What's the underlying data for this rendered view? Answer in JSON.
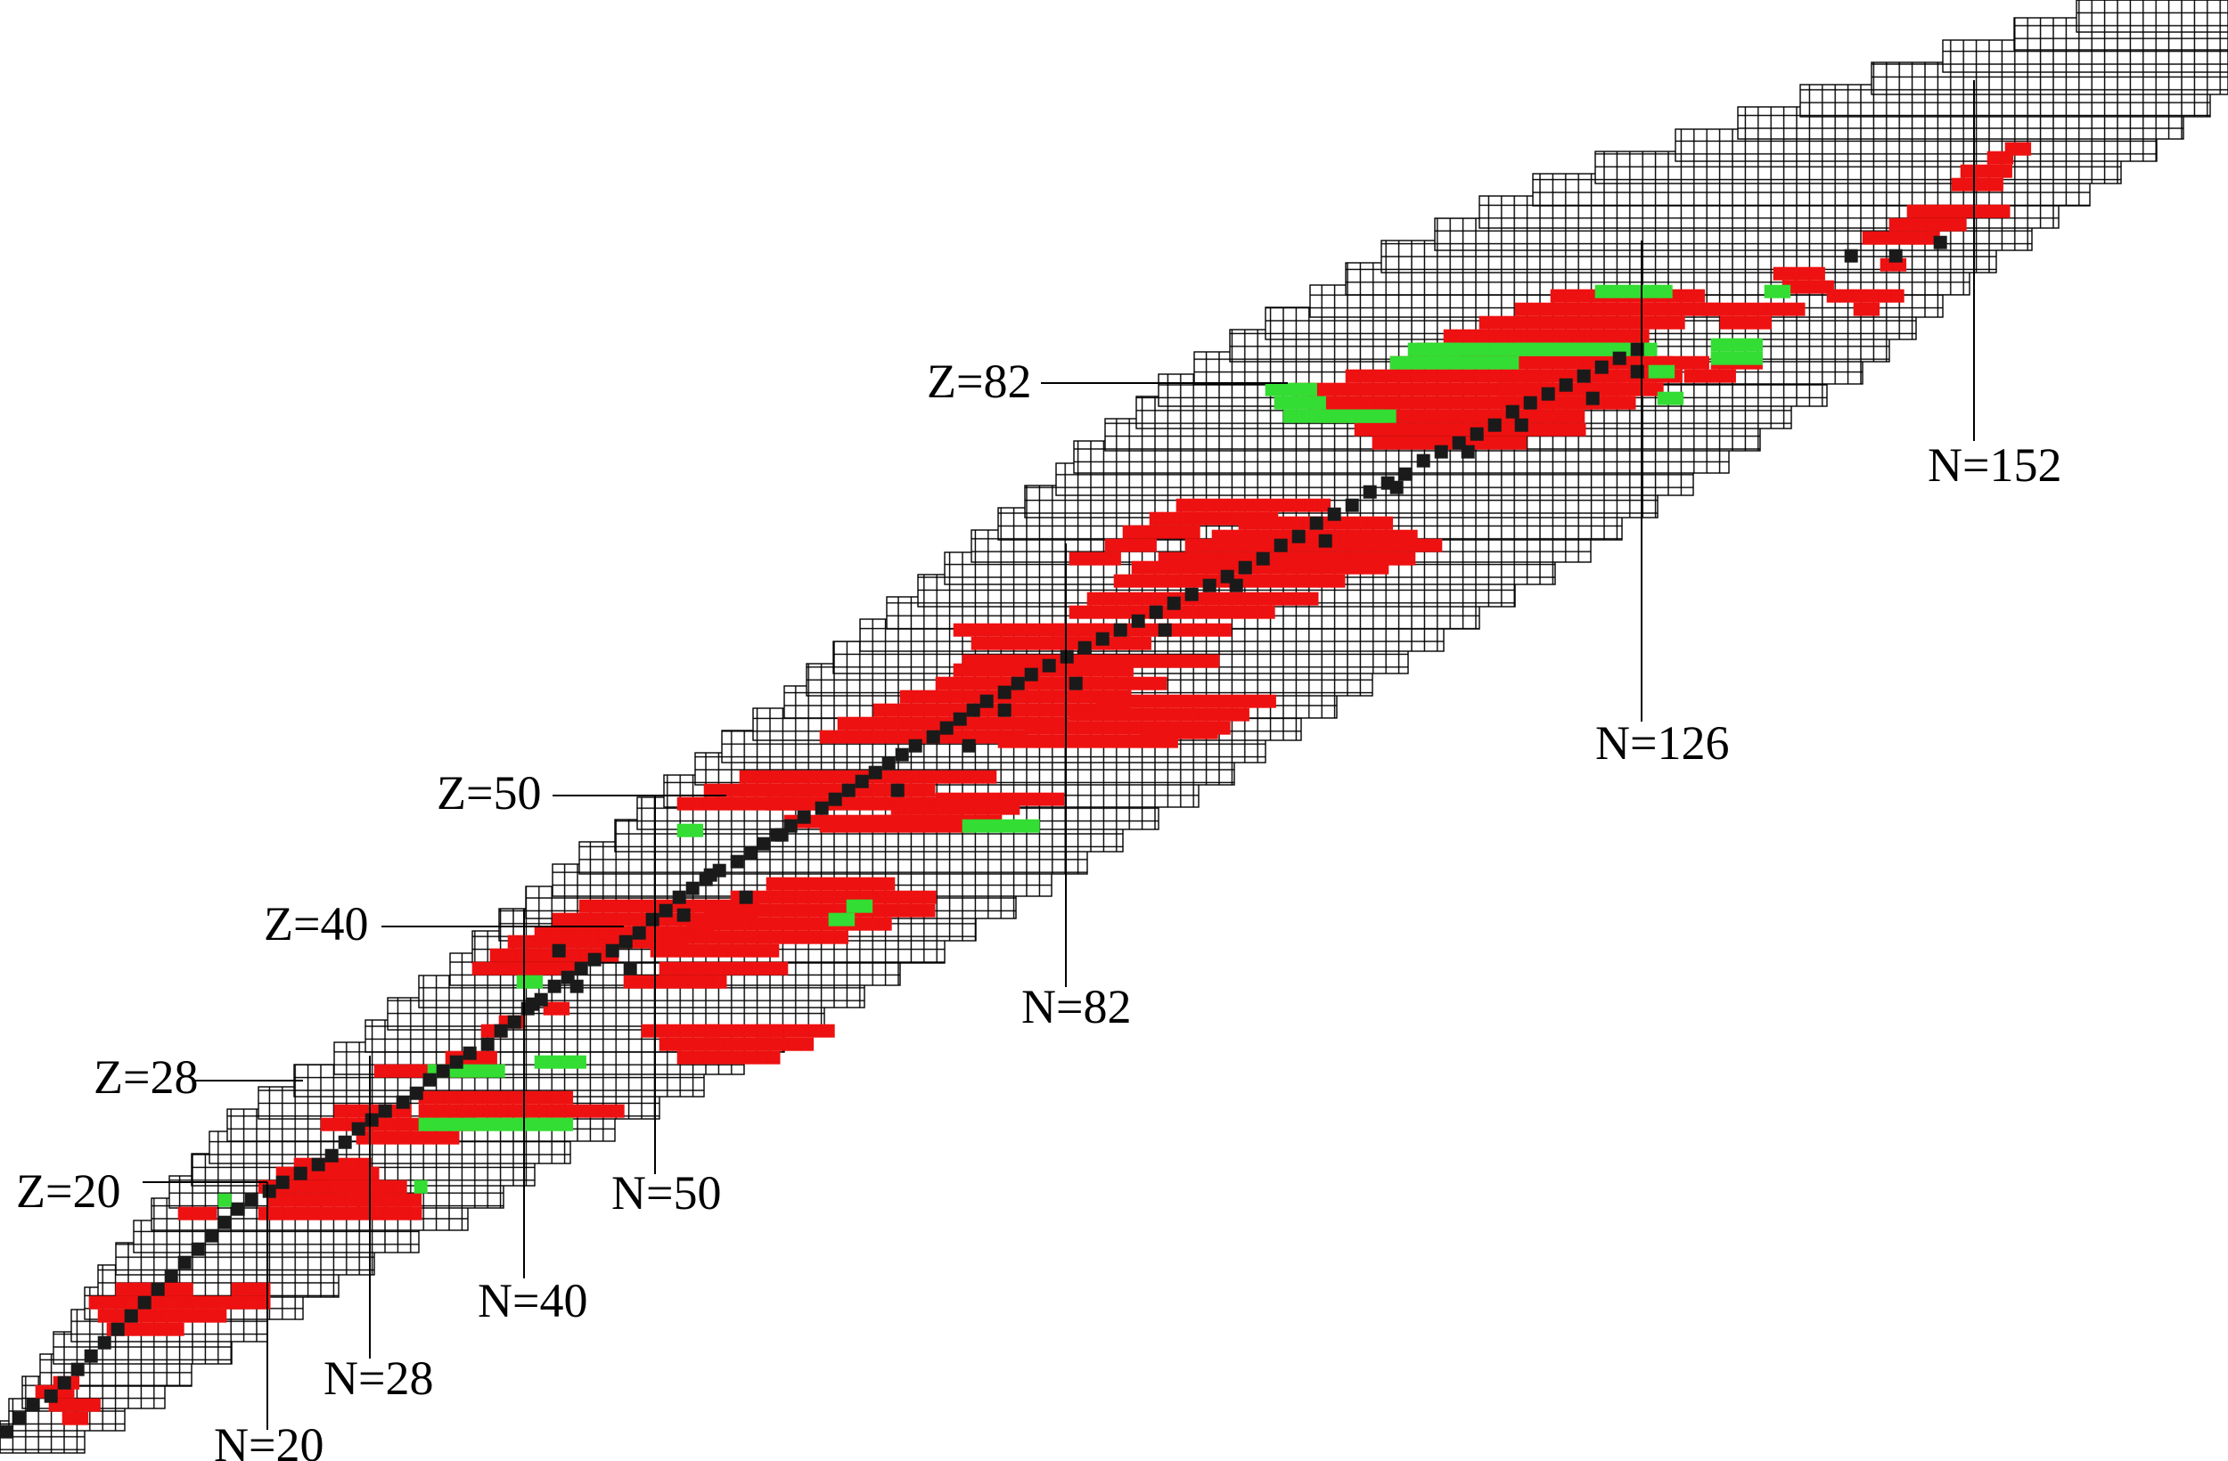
{
  "colors": {
    "stable": "#1a1a1a",
    "red": "#ee1111",
    "green": "#33dd33",
    "grid": "#000000",
    "background": "#ffffff"
  },
  "labels": {
    "z20": "Z=20",
    "z28": "Z=28",
    "z40": "Z=40",
    "z50": "Z=50",
    "z82": "Z=82",
    "n20": "N=20",
    "n28": "N=28",
    "n40": "N=40",
    "n50": "N=50",
    "n82": "N=82",
    "n126": "N=126",
    "n152": "N=152"
  }
}
